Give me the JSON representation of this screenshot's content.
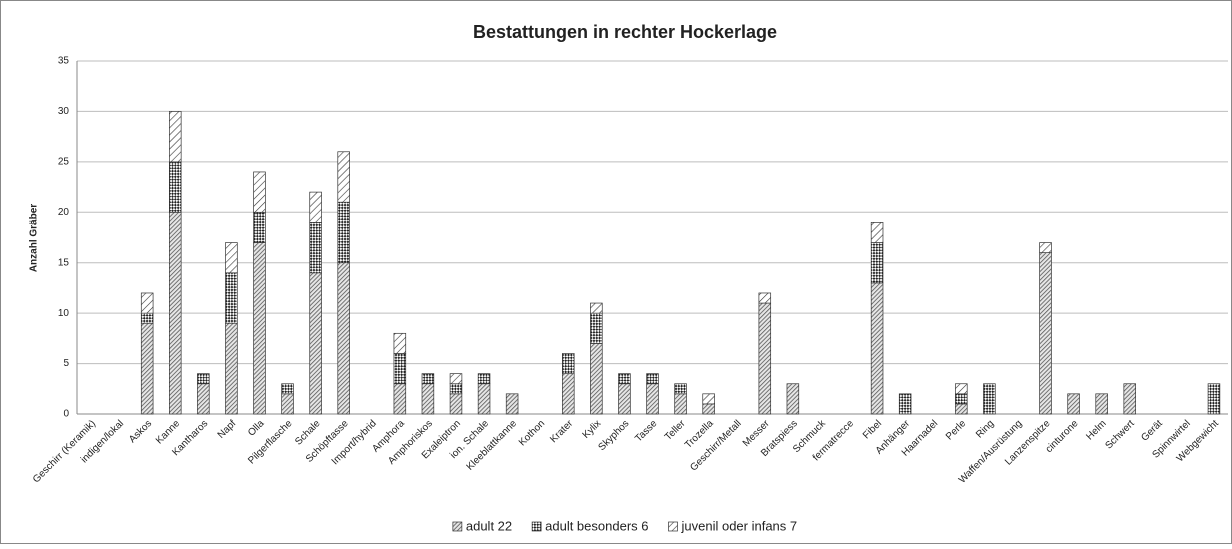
{
  "chart_data": {
    "type": "bar",
    "stacked": true,
    "title": "Bestattungen in rechter Hockerlage",
    "y_label": "Anzahl Gräber",
    "categories": [
      "Geschirr (Keramik)",
      "indigen/lokal",
      "Askos",
      "Kanne",
      "Kantharos",
      "Napf",
      "Olla",
      "Pilgerflasche",
      "Schale",
      "Schöpftasse",
      "Import/hybrid",
      "Amphora",
      "Amphoriskos",
      "Exaleiptron",
      "ion. Schale",
      "Kleeblattkanne",
      "Kothon",
      "Krater",
      "Kylix",
      "Skyphos",
      "Tasse",
      "Teller",
      "Trozella",
      "Geschirr/Metall",
      "Messer",
      "Bratspiess",
      "Schmuck",
      "fermatrecce",
      "Fibel",
      "Anhänger",
      "Haarnadel",
      "Perle",
      "Ring",
      "Waffen/Ausrüstung",
      "Lanzenspitze",
      "cinturone",
      "Helm",
      "Schwert",
      "Gerät",
      "Spinnwirtel",
      "Webgewicht"
    ],
    "series": [
      {
        "name": "adult 22",
        "color": "#555555",
        "pattern": "hatch-dense",
        "values": [
          0,
          0,
          9,
          20,
          3,
          9,
          17,
          2,
          14,
          15,
          0,
          3,
          3,
          2,
          3,
          2,
          0,
          4,
          7,
          3,
          3,
          2,
          1,
          0,
          11,
          3,
          0,
          0,
          13,
          0,
          0,
          1,
          0,
          0,
          16,
          2,
          2,
          3,
          0,
          0,
          0
        ]
      },
      {
        "name": "adult besonders 6",
        "color": "#222222",
        "pattern": "checker",
        "values": [
          0,
          0,
          1,
          5,
          1,
          5,
          3,
          1,
          5,
          6,
          0,
          3,
          1,
          1,
          1,
          0,
          0,
          2,
          3,
          1,
          1,
          1,
          0,
          0,
          0,
          0,
          0,
          0,
          4,
          2,
          0,
          1,
          3,
          0,
          0,
          0,
          0,
          0,
          0,
          0,
          3
        ]
      },
      {
        "name": "juvenil oder infans 7",
        "color": "#333333",
        "pattern": "hatch-sparse",
        "values": [
          0,
          0,
          2,
          5,
          0,
          3,
          4,
          0,
          3,
          5,
          0,
          2,
          0,
          1,
          0,
          0,
          0,
          0,
          1,
          0,
          0,
          0,
          1,
          0,
          1,
          0,
          0,
          0,
          2,
          0,
          0,
          1,
          0,
          0,
          1,
          0,
          0,
          0,
          0,
          0,
          0
        ]
      }
    ],
    "ylim": [
      0,
      35
    ],
    "yticks": [
      0,
      5,
      10,
      15,
      20,
      25,
      30,
      35
    ],
    "grid": true,
    "legend": "bottom"
  }
}
